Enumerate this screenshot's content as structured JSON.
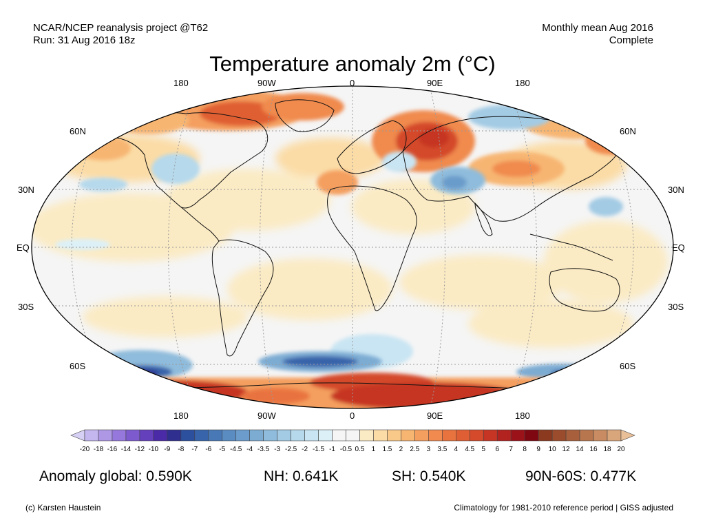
{
  "header": {
    "source_line1": "NCAR/NCEP reanalysis project @T62",
    "source_line2": "Run: 31 Aug 2016 18z",
    "period_line1": "Monthly mean Aug 2016",
    "period_line2": "Complete"
  },
  "title": "Temperature anomaly 2m (°C)",
  "axes": {
    "lon_top": [
      "180",
      "90W",
      "0",
      "90E",
      "180"
    ],
    "lon_bottom": [
      "180",
      "90W",
      "0",
      "90E",
      "180"
    ],
    "lat_left": [
      "60N",
      "30N",
      "EQ",
      "30S",
      "60S"
    ],
    "lat_right": [
      "60N",
      "30N",
      "EQ",
      "30S",
      "60S"
    ]
  },
  "colorbar": {
    "labels": [
      "-20",
      "-18",
      "-16",
      "-14",
      "-12",
      "-10",
      "-9",
      "-8",
      "-7",
      "-6",
      "-5",
      "-4.5",
      "-4",
      "-3.5",
      "-3",
      "-2.5",
      "-2",
      "-1.5",
      "-1",
      "-0.5",
      "0.5",
      "1",
      "1.5",
      "2",
      "2.5",
      "3",
      "3.5",
      "4",
      "4.5",
      "5",
      "6",
      "7",
      "8",
      "9",
      "10",
      "12",
      "14",
      "16",
      "18",
      "20"
    ],
    "colors": [
      "#d7d0f5",
      "#c4b6ef",
      "#ae98e6",
      "#9678dc",
      "#7d5bcf",
      "#6440bd",
      "#4a2aa6",
      "#2e2f8f",
      "#2c4f9e",
      "#3764aa",
      "#4878b6",
      "#5a8cc2",
      "#6b9ccb",
      "#7dacd3",
      "#8fbcdc",
      "#a3cbe4",
      "#b6d9ec",
      "#c9e5f3",
      "#dcf0f8",
      "#f5f5f5",
      "#f5f5f5",
      "#fbebc4",
      "#fbdca6",
      "#f9c98a",
      "#f7b572",
      "#f49f5f",
      "#f08a4e",
      "#e9733f",
      "#e05e33",
      "#d44a2a",
      "#c63524",
      "#b2221f",
      "#9c1219",
      "#7e0712",
      "#8b3a20",
      "#9a4c2c",
      "#a8603c",
      "#b8764e",
      "#c98c62",
      "#d9a57a",
      "#e8bf97"
    ]
  },
  "stats": {
    "global": "Anomaly global: 0.590K",
    "nh": "NH: 0.641K",
    "sh": "SH: 0.540K",
    "arctic": "90N-60S: 0.477K"
  },
  "footer": {
    "credit": "(c) Karsten Haustein",
    "note": "Climatology for 1981-2010 reference period | GISS adjusted"
  },
  "map": {
    "projection": "Robinson",
    "ocean_color": "#f5f5f5",
    "anomaly_regions": [
      {
        "name": "arctic-canada-greenland",
        "level": "3 to 5",
        "color": "#e05e33"
      },
      {
        "name": "western-siberia",
        "level": "5 to 6",
        "color": "#c63524"
      },
      {
        "name": "antarctic-coast",
        "level": "5 to 8",
        "color": "#b2221f"
      },
      {
        "name": "southern-ocean-pacific",
        "level": "-6 to -8",
        "color": "#2e2f8f"
      },
      {
        "name": "southern-ocean-indian",
        "level": "-4 to -5",
        "color": "#3764aa"
      },
      {
        "name": "central-asia",
        "level": "-2 to -3",
        "color": "#7dacd3"
      },
      {
        "name": "eastern-siberia",
        "level": "-1 to -2",
        "color": "#a3cbe4"
      }
    ]
  }
}
